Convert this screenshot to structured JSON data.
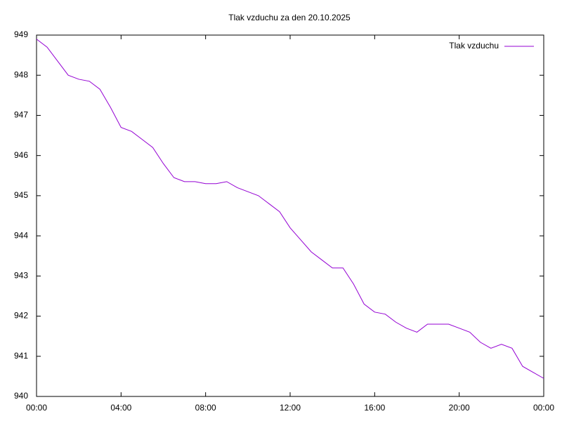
{
  "chart_data": {
    "type": "line",
    "title": "Tlak vzduchu za den 20.10.2025",
    "x": [
      0,
      0.5,
      1,
      1.5,
      2,
      2.5,
      3,
      3.5,
      4,
      4.5,
      5,
      5.5,
      6,
      6.5,
      7,
      7.5,
      8,
      8.5,
      9,
      9.5,
      10,
      10.5,
      11,
      11.5,
      12,
      12.5,
      13,
      13.5,
      14,
      14.5,
      15,
      15.5,
      16,
      16.5,
      17,
      17.5,
      18,
      18.5,
      19,
      19.5,
      20,
      20.5,
      21,
      21.5,
      22,
      22.5,
      23,
      23.5,
      24
    ],
    "series": [
      {
        "name": "Tlak vzduchu",
        "color": "#9400d3",
        "values": [
          948.9,
          948.7,
          948.35,
          948.0,
          947.9,
          947.85,
          947.65,
          947.2,
          946.7,
          946.6,
          946.4,
          946.2,
          945.8,
          945.45,
          945.35,
          945.35,
          945.3,
          945.3,
          945.35,
          945.2,
          945.1,
          945.0,
          944.8,
          944.6,
          944.2,
          943.9,
          943.6,
          943.4,
          943.2,
          943.2,
          942.8,
          942.3,
          942.1,
          942.05,
          941.85,
          941.7,
          941.6,
          941.8,
          941.8,
          941.8,
          941.7,
          941.6,
          941.35,
          941.2,
          941.3,
          941.2,
          940.75,
          940.6,
          940.45
        ]
      }
    ],
    "xlim": [
      0,
      24
    ],
    "xticks": [
      {
        "value": 0,
        "label": "00:00"
      },
      {
        "value": 4,
        "label": "04:00"
      },
      {
        "value": 8,
        "label": "08:00"
      },
      {
        "value": 12,
        "label": "12:00"
      },
      {
        "value": 16,
        "label": "16:00"
      },
      {
        "value": 20,
        "label": "20:00"
      },
      {
        "value": 24,
        "label": "00:00"
      }
    ],
    "ylim": [
      940,
      949
    ],
    "yticks": [
      940,
      941,
      942,
      943,
      944,
      945,
      946,
      947,
      948,
      949
    ],
    "legend": "top-right"
  }
}
